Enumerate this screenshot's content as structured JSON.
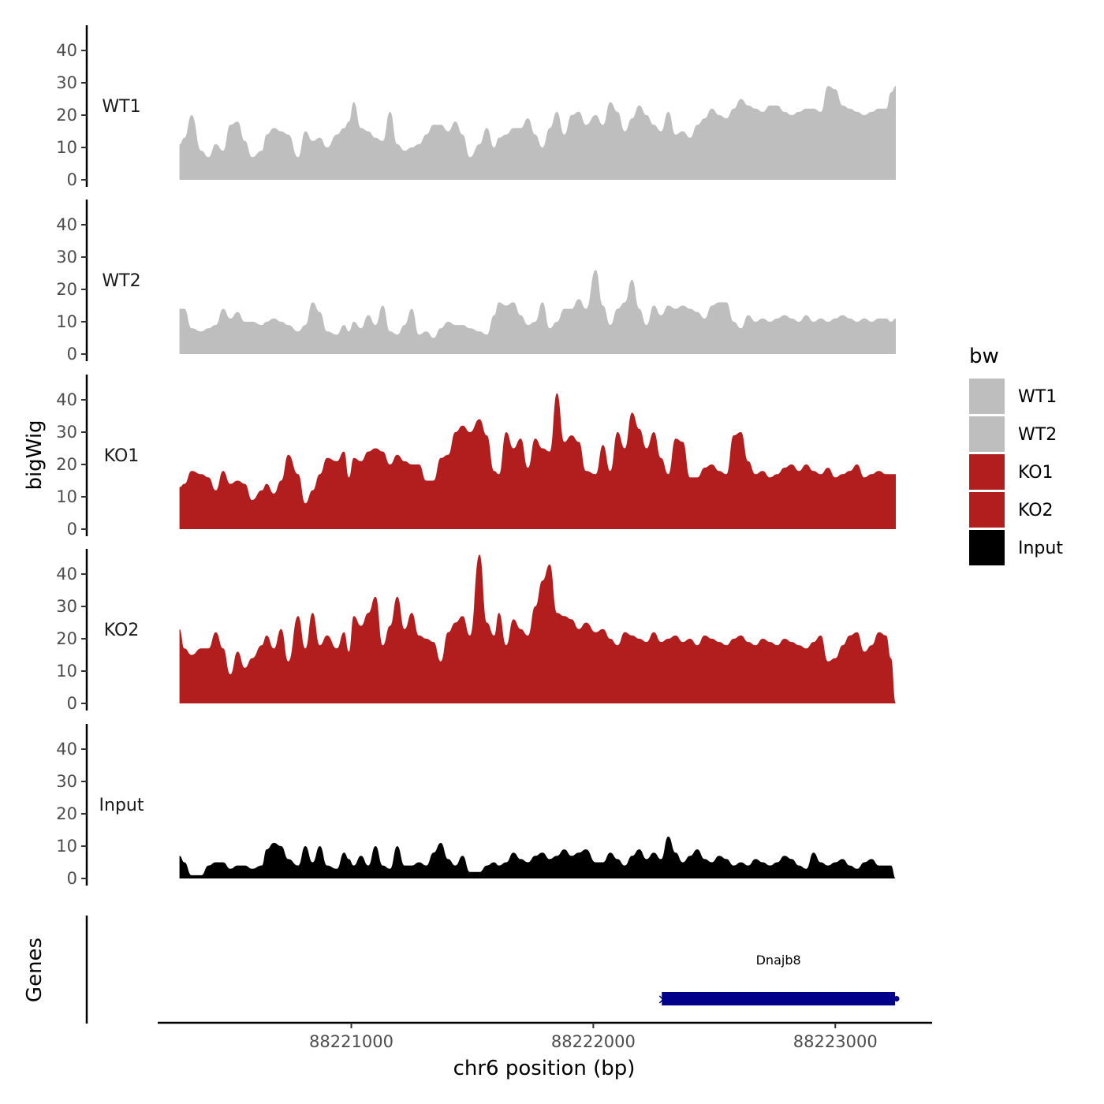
{
  "chart_data": {
    "type": "area",
    "ylabel": "bigWig",
    "xlabel": "chr6 position (bp)",
    "gene_track_label": "Genes",
    "legend": {
      "title": "bw",
      "placement": "right"
    },
    "ylim": [
      0,
      45
    ],
    "yticks": [
      0,
      10,
      20,
      30,
      40
    ],
    "xlim": [
      88220200,
      88223400
    ],
    "xticks": [
      88221000,
      88222000,
      88223000
    ],
    "x_start": 88220290,
    "x_end": 88223250,
    "grid": false,
    "series": [
      {
        "name": "WT1",
        "color": "#bebebe",
        "x": [
          88220290,
          88220310,
          88220340,
          88220380,
          88220410,
          88220440,
          88220470,
          88220500,
          88220530,
          88220560,
          88220590,
          88220630,
          88220650,
          88220680,
          88220710,
          88220740,
          88220780,
          88220810,
          88220840,
          88220870,
          88220900,
          88220940,
          88220970,
          88220990,
          88221010,
          88221040,
          88221070,
          88221100,
          88221130,
          88221160,
          88221190,
          88221220,
          88221250,
          88221280,
          88221310,
          88221340,
          88221370,
          88221400,
          88221430,
          88221460,
          88221490,
          88221530,
          88221560,
          88221590,
          88221610,
          88221640,
          88221670,
          88221700,
          88221730,
          88221760,
          88221790,
          88221820,
          88221850,
          88221880,
          88221910,
          88221940,
          88221970,
          88222010,
          88222040,
          88222070,
          88222100,
          88222130,
          88222160,
          88222190,
          88222220,
          88222250,
          88222280,
          88222310,
          88222340,
          88222370,
          88222400,
          88222430,
          88222460,
          88222490,
          88222520,
          88222550,
          88222580,
          88222610,
          88222640,
          88222670,
          88222700,
          88222730,
          88222760,
          88222790,
          88222820,
          88222850,
          88222880,
          88222910,
          88222940,
          88222970,
          88223000,
          88223030,
          88223060,
          88223090,
          88223120,
          88223150,
          88223180,
          88223210,
          88223230,
          88223250
        ],
        "values": [
          11,
          13,
          20,
          9,
          7,
          11,
          9,
          17,
          18,
          12,
          7,
          9,
          14,
          16,
          15,
          14,
          7,
          15,
          12,
          13,
          10,
          14,
          16,
          18,
          24,
          16,
          15,
          13,
          12,
          21,
          11,
          9,
          10,
          11,
          14,
          17,
          17,
          15,
          18,
          14,
          7,
          11,
          16,
          10,
          13,
          14,
          16,
          16,
          19,
          14,
          10,
          16,
          21,
          14,
          20,
          21,
          17,
          20,
          17,
          24,
          21,
          15,
          19,
          23,
          20,
          17,
          15,
          21,
          14,
          15,
          13,
          17,
          19,
          22,
          20,
          19,
          22,
          25,
          23,
          22,
          21,
          23,
          23,
          21,
          20,
          21,
          22,
          22,
          21,
          29,
          28,
          23,
          22,
          21,
          20,
          21,
          22,
          22,
          27,
          29
        ]
      },
      {
        "name": "WT2",
        "color": "#bebebe",
        "x": [
          88220290,
          88220310,
          88220340,
          88220380,
          88220410,
          88220440,
          88220470,
          88220500,
          88220530,
          88220560,
          88220590,
          88220630,
          88220650,
          88220680,
          88220710,
          88220740,
          88220780,
          88220810,
          88220840,
          88220870,
          88220900,
          88220940,
          88220970,
          88220990,
          88221010,
          88221040,
          88221070,
          88221100,
          88221130,
          88221160,
          88221190,
          88221220,
          88221250,
          88221280,
          88221310,
          88221340,
          88221370,
          88221400,
          88221430,
          88221460,
          88221490,
          88221530,
          88221560,
          88221590,
          88221610,
          88221640,
          88221670,
          88221700,
          88221730,
          88221760,
          88221790,
          88221820,
          88221850,
          88221880,
          88221910,
          88221940,
          88221970,
          88222010,
          88222040,
          88222070,
          88222100,
          88222130,
          88222160,
          88222190,
          88222220,
          88222250,
          88222280,
          88222310,
          88222340,
          88222370,
          88222400,
          88222430,
          88222460,
          88222490,
          88222520,
          88222550,
          88222580,
          88222610,
          88222640,
          88222670,
          88222700,
          88222730,
          88222760,
          88222790,
          88222820,
          88222850,
          88222880,
          88222910,
          88222940,
          88222970,
          88223000,
          88223030,
          88223060,
          88223090,
          88223120,
          88223150,
          88223180,
          88223210,
          88223230,
          88223250
        ],
        "values": [
          14,
          14,
          8,
          7,
          8,
          9,
          14,
          11,
          13,
          10,
          10,
          9,
          10,
          11,
          10,
          9,
          7,
          9,
          16,
          13,
          7,
          6,
          9,
          7,
          10,
          8,
          12,
          9,
          15,
          7,
          6,
          9,
          14,
          6,
          7,
          5,
          8,
          10,
          9,
          9,
          8,
          7,
          6,
          12,
          16,
          15,
          16,
          12,
          9,
          10,
          16,
          8,
          10,
          14,
          14,
          17,
          14,
          26,
          15,
          9,
          14,
          16,
          23,
          14,
          9,
          15,
          12,
          15,
          14,
          15,
          14,
          13,
          11,
          15,
          16,
          16,
          10,
          8,
          12,
          10,
          11,
          10,
          11,
          12,
          11,
          10,
          12,
          10,
          11,
          10,
          11,
          12,
          11,
          10,
          11,
          10,
          11,
          11,
          10,
          11
        ]
      },
      {
        "name": "KO1",
        "color": "#b21e1e",
        "x": [
          88220290,
          88220310,
          88220340,
          88220380,
          88220410,
          88220440,
          88220470,
          88220500,
          88220530,
          88220560,
          88220590,
          88220630,
          88220650,
          88220680,
          88220710,
          88220740,
          88220780,
          88220810,
          88220840,
          88220870,
          88220900,
          88220940,
          88220970,
          88220990,
          88221010,
          88221040,
          88221070,
          88221100,
          88221130,
          88221160,
          88221190,
          88221220,
          88221250,
          88221280,
          88221310,
          88221340,
          88221370,
          88221400,
          88221430,
          88221460,
          88221490,
          88221530,
          88221560,
          88221590,
          88221610,
          88221640,
          88221670,
          88221700,
          88221730,
          88221760,
          88221790,
          88221820,
          88221850,
          88221880,
          88221910,
          88221940,
          88221970,
          88222010,
          88222040,
          88222070,
          88222100,
          88222130,
          88222160,
          88222190,
          88222220,
          88222250,
          88222280,
          88222310,
          88222340,
          88222370,
          88222400,
          88222430,
          88222460,
          88222490,
          88222520,
          88222550,
          88222580,
          88222610,
          88222640,
          88222670,
          88222700,
          88222730,
          88222760,
          88222790,
          88222820,
          88222850,
          88222880,
          88222910,
          88222940,
          88222970,
          88223000,
          88223030,
          88223060,
          88223090,
          88223120,
          88223150,
          88223180,
          88223210,
          88223230,
          88223250
        ],
        "values": [
          13,
          14,
          18,
          17,
          16,
          12,
          18,
          14,
          15,
          14,
          9,
          12,
          14,
          11,
          15,
          23,
          17,
          8,
          12,
          17,
          22,
          21,
          24,
          16,
          22,
          21,
          24,
          25,
          24,
          20,
          23,
          21,
          20,
          20,
          15,
          15,
          22,
          23,
          30,
          32,
          30,
          34,
          29,
          18,
          17,
          30,
          25,
          28,
          19,
          28,
          25,
          24,
          42,
          27,
          29,
          27,
          18,
          17,
          26,
          18,
          30,
          25,
          36,
          31,
          25,
          30,
          22,
          17,
          28,
          27,
          16,
          16,
          19,
          20,
          18,
          17,
          29,
          30,
          21,
          17,
          18,
          16,
          17,
          19,
          20,
          18,
          20,
          18,
          17,
          19,
          16,
          17,
          18,
          20,
          16,
          17,
          18,
          17,
          17,
          17
        ]
      },
      {
        "name": "KO2",
        "color": "#b21e1e",
        "x": [
          88220290,
          88220310,
          88220340,
          88220380,
          88220410,
          88220440,
          88220470,
          88220500,
          88220530,
          88220560,
          88220590,
          88220630,
          88220650,
          88220680,
          88220710,
          88220740,
          88220780,
          88220810,
          88220840,
          88220870,
          88220900,
          88220940,
          88220970,
          88220990,
          88221010,
          88221040,
          88221070,
          88221100,
          88221130,
          88221160,
          88221190,
          88221220,
          88221250,
          88221280,
          88221310,
          88221340,
          88221370,
          88221400,
          88221430,
          88221460,
          88221490,
          88221530,
          88221560,
          88221590,
          88221610,
          88221640,
          88221670,
          88221700,
          88221730,
          88221760,
          88221790,
          88221820,
          88221850,
          88221880,
          88221910,
          88221940,
          88221970,
          88222010,
          88222040,
          88222070,
          88222100,
          88222130,
          88222160,
          88222190,
          88222220,
          88222250,
          88222280,
          88222310,
          88222340,
          88222370,
          88222400,
          88222430,
          88222460,
          88222490,
          88222520,
          88222550,
          88222580,
          88222610,
          88222640,
          88222670,
          88222700,
          88222730,
          88222760,
          88222790,
          88222820,
          88222850,
          88222880,
          88222910,
          88222940,
          88222970,
          88223000,
          88223030,
          88223060,
          88223090,
          88223120,
          88223150,
          88223180,
          88223210,
          88223230,
          88223250
        ],
        "values": [
          23,
          17,
          15,
          17,
          17,
          22,
          17,
          9,
          16,
          11,
          14,
          18,
          21,
          17,
          23,
          13,
          27,
          17,
          28,
          18,
          21,
          17,
          22,
          16,
          27,
          24,
          28,
          33,
          18,
          24,
          33,
          23,
          28,
          21,
          20,
          19,
          13,
          22,
          25,
          27,
          21,
          46,
          25,
          21,
          28,
          18,
          26,
          23,
          21,
          30,
          38,
          43,
          28,
          27,
          26,
          23,
          25,
          22,
          23,
          20,
          18,
          22,
          21,
          20,
          19,
          22,
          19,
          20,
          21,
          19,
          20,
          18,
          21,
          20,
          19,
          18,
          20,
          21,
          19,
          18,
          20,
          19,
          18,
          20,
          19,
          18,
          17,
          19,
          21,
          13,
          14,
          18,
          21,
          22,
          16,
          18,
          22,
          21,
          14,
          0
        ]
      },
      {
        "name": "Input",
        "color": "#000000",
        "x": [
          88220290,
          88220310,
          88220340,
          88220380,
          88220410,
          88220440,
          88220470,
          88220500,
          88220530,
          88220560,
          88220590,
          88220630,
          88220650,
          88220680,
          88220710,
          88220740,
          88220780,
          88220810,
          88220840,
          88220870,
          88220900,
          88220940,
          88220970,
          88220990,
          88221010,
          88221040,
          88221070,
          88221100,
          88221130,
          88221160,
          88221190,
          88221220,
          88221250,
          88221280,
          88221310,
          88221340,
          88221370,
          88221400,
          88221430,
          88221460,
          88221490,
          88221530,
          88221560,
          88221590,
          88221610,
          88221640,
          88221670,
          88221700,
          88221730,
          88221760,
          88221790,
          88221820,
          88221850,
          88221880,
          88221910,
          88221940,
          88221970,
          88222010,
          88222040,
          88222070,
          88222100,
          88222130,
          88222160,
          88222190,
          88222220,
          88222250,
          88222280,
          88222310,
          88222340,
          88222370,
          88222400,
          88222430,
          88222460,
          88222490,
          88222520,
          88222550,
          88222580,
          88222610,
          88222640,
          88222670,
          88222700,
          88222730,
          88222760,
          88222790,
          88222820,
          88222850,
          88222880,
          88222910,
          88222940,
          88222970,
          88223000,
          88223030,
          88223060,
          88223090,
          88223120,
          88223150,
          88223180,
          88223210,
          88223230,
          88223250
        ],
        "values": [
          7,
          5,
          1,
          1,
          4,
          5,
          5,
          3,
          4,
          4,
          3,
          4,
          9,
          11,
          10,
          6,
          4,
          10,
          5,
          10,
          4,
          3,
          8,
          6,
          4,
          7,
          4,
          10,
          4,
          3,
          10,
          4,
          4,
          5,
          4,
          8,
          11,
          6,
          4,
          7,
          2,
          2,
          4,
          5,
          4,
          5,
          8,
          6,
          5,
          7,
          8,
          6,
          7,
          9,
          7,
          8,
          9,
          5,
          5,
          8,
          6,
          4,
          7,
          9,
          6,
          8,
          6,
          13,
          8,
          5,
          7,
          9,
          6,
          5,
          7,
          6,
          4,
          5,
          4,
          6,
          5,
          4,
          5,
          7,
          6,
          4,
          3,
          8,
          5,
          4,
          5,
          6,
          4,
          3,
          5,
          6,
          4,
          4,
          4,
          0
        ]
      }
    ],
    "genes": [
      {
        "name": "Dnajb8",
        "start": 88222270,
        "end": 88223260,
        "strand": "-",
        "color": "#00008b"
      }
    ]
  }
}
